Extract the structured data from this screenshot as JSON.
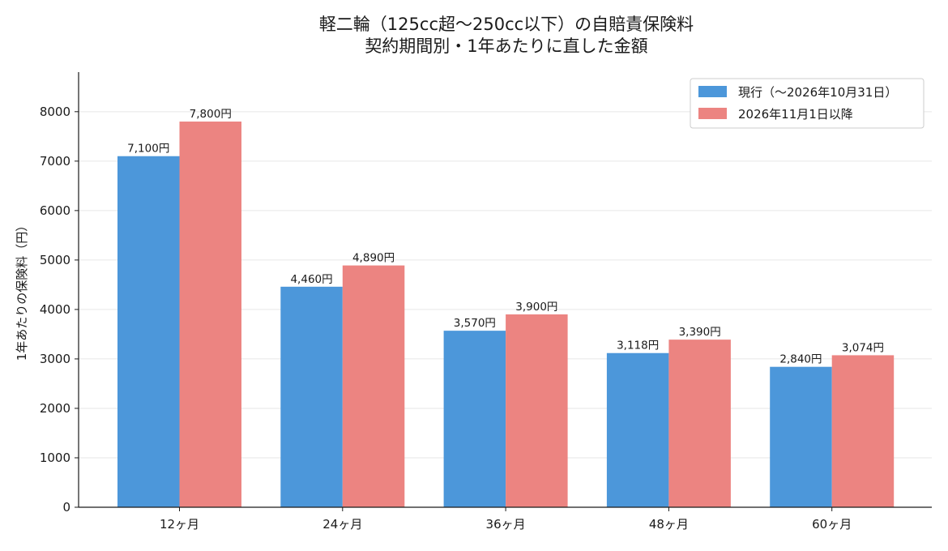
{
  "chart_data": {
    "type": "bar",
    "title_lines": [
      "軽二輪（125cc超〜250cc以下）の自賠責保険料",
      "契約期間別・1年あたりに直した金額"
    ],
    "xlabel": "",
    "ylabel": "1年あたりの保険料（円）",
    "categories": [
      "12ヶ月",
      "24ヶ月",
      "36ヶ月",
      "48ヶ月",
      "60ヶ月"
    ],
    "series": [
      {
        "name": "現行（〜2026年10月31日）",
        "color": "#4c97da",
        "values": [
          7100,
          4460,
          3570,
          3118,
          2840
        ],
        "labels": [
          "7,100円",
          "4,460円",
          "3,570円",
          "3,118円",
          "2,840円"
        ]
      },
      {
        "name": "2026年11月1日以降",
        "color": "#ec8481",
        "values": [
          7800,
          4890,
          3900,
          3390,
          3074
        ],
        "labels": [
          "7,800円",
          "4,890円",
          "3,900円",
          "3,390円",
          "3,074円"
        ]
      }
    ],
    "ylim": [
      0,
      8800
    ],
    "yticks": [
      "0",
      "1000",
      "2000",
      "3000",
      "4000",
      "5000",
      "6000",
      "7000",
      "8000"
    ],
    "grid": "y",
    "legend": "top-right"
  }
}
